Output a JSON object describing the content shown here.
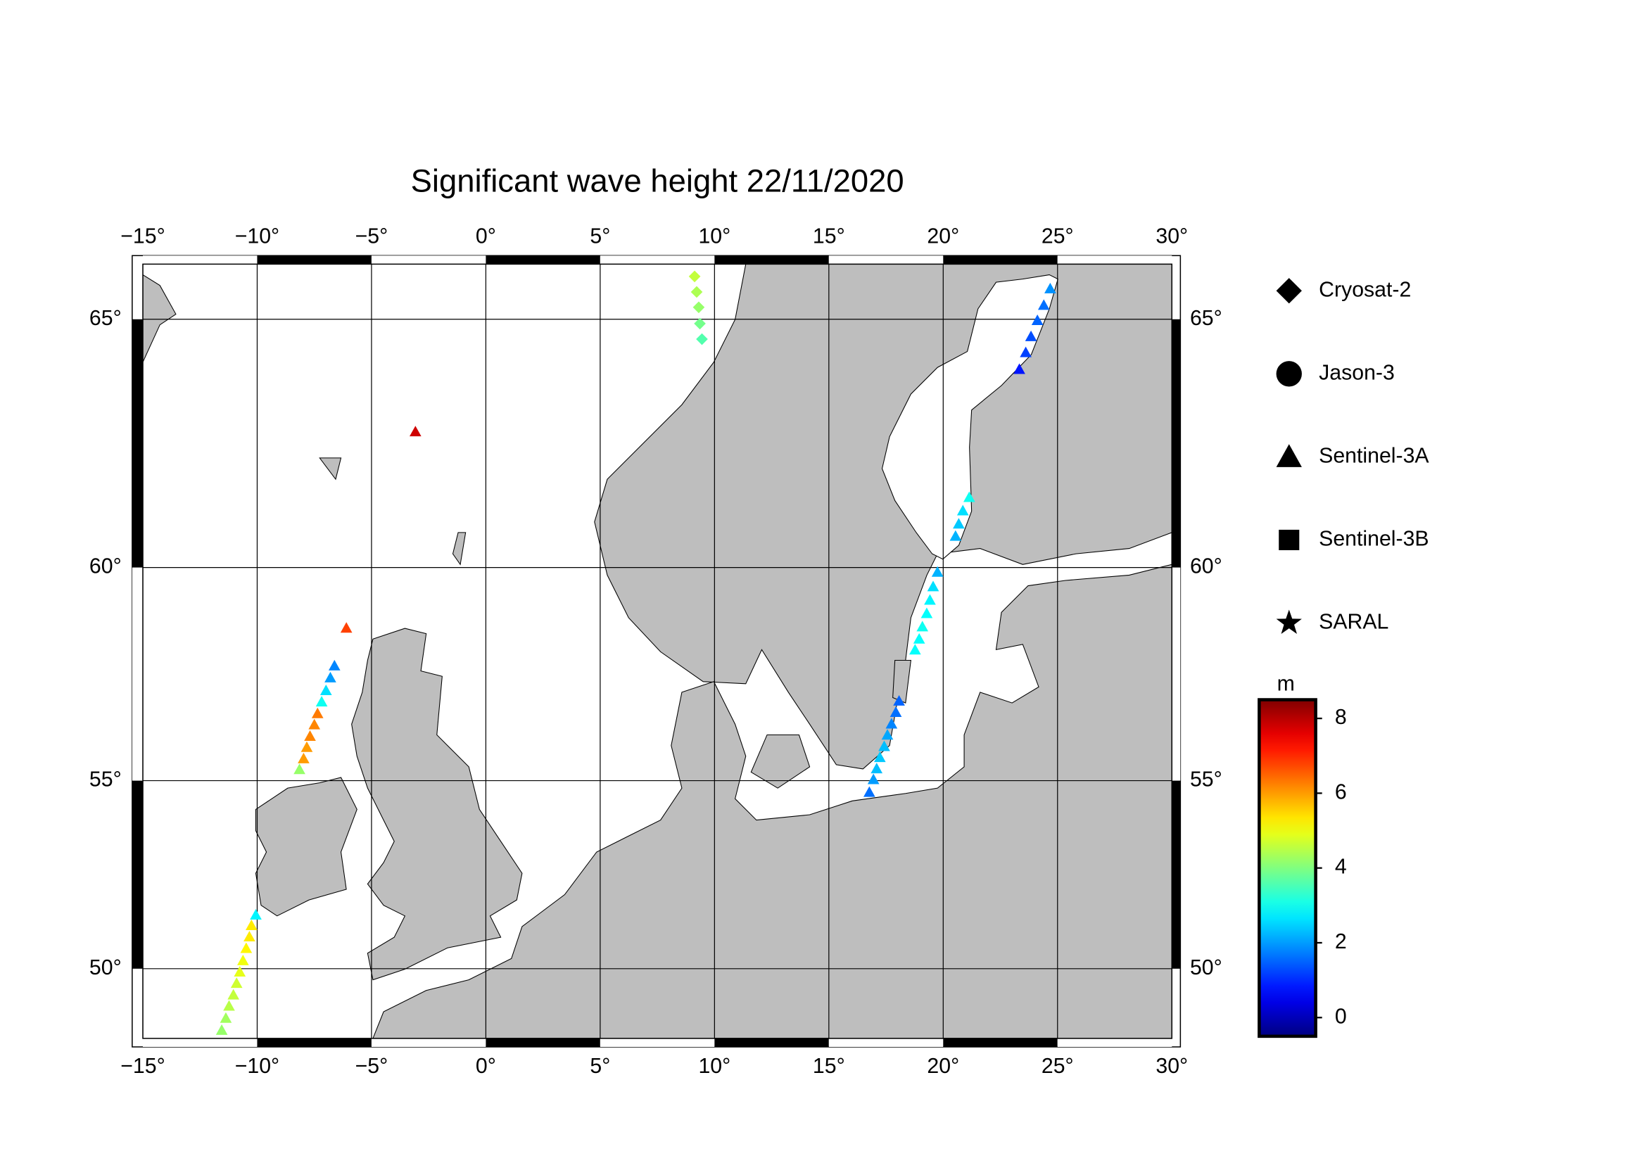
{
  "chart_data": {
    "type": "map",
    "title": "Significant wave height 22/11/2020",
    "projection": "mercator",
    "xlim": [
      -15,
      30
    ],
    "ylim": [
      48,
      66
    ],
    "xticks": [
      {
        "value": -15,
        "label": "−15°"
      },
      {
        "value": -10,
        "label": "−10°"
      },
      {
        "value": -5,
        "label": "−5°"
      },
      {
        "value": 0,
        "label": "0°"
      },
      {
        "value": 5,
        "label": "5°"
      },
      {
        "value": 10,
        "label": "10°"
      },
      {
        "value": 15,
        "label": "15°"
      },
      {
        "value": 20,
        "label": "20°"
      },
      {
        "value": 25,
        "label": "25°"
      },
      {
        "value": 30,
        "label": "30°"
      }
    ],
    "yticks": [
      {
        "value": 50,
        "label": "50°"
      },
      {
        "value": 55,
        "label": "55°"
      },
      {
        "value": 60,
        "label": "60°"
      },
      {
        "value": 65,
        "label": "65°"
      }
    ],
    "grid": true,
    "land_color": "#bebebe",
    "colorbar": {
      "label": "m",
      "lim": [
        -0.5,
        8.5
      ],
      "ticks": [
        0,
        2,
        4,
        6,
        8
      ],
      "colormap": "jet"
    },
    "series": [
      {
        "name": "Cryosat-2",
        "marker": "diamond",
        "lon": [
          9.13,
          9.22,
          9.31,
          9.36,
          9.45
        ],
        "lat": [
          65.78,
          65.5,
          65.22,
          64.92,
          64.63
        ],
        "values": [
          4.6,
          4.4,
          4.2,
          3.9,
          3.6
        ]
      },
      {
        "name": "Jason-3",
        "marker": "circle",
        "lon": [],
        "lat": [],
        "values": []
      },
      {
        "name": "Sentinel-3A",
        "marker": "triangle",
        "lon": [
          -3.08,
          -6.1,
          -6.62,
          -6.8,
          -6.99,
          -7.18,
          -7.36,
          -7.5,
          -7.69,
          -7.83,
          -7.97,
          -8.15,
          -10.06,
          -10.25,
          -10.34,
          -10.48,
          -10.62,
          -10.76,
          -10.9,
          -11.04,
          -11.23,
          -11.37,
          -11.55,
          16.77,
          16.95,
          17.09,
          17.23,
          17.42,
          17.56,
          17.74,
          17.93,
          18.07,
          18.77,
          18.95,
          19.09,
          19.28,
          19.42,
          19.56,
          19.75,
          20.54,
          20.68,
          20.86,
          21.14,
          24.68,
          24.4,
          24.12,
          23.84,
          23.61,
          23.33
        ],
        "lat": [
          62.84,
          58.65,
          57.78,
          57.5,
          57.2,
          56.93,
          56.65,
          56.38,
          56.1,
          55.83,
          55.55,
          55.28,
          51.49,
          51.2,
          50.89,
          50.57,
          50.23,
          49.91,
          49.59,
          49.26,
          48.94,
          48.59,
          48.24,
          54.71,
          55.03,
          55.3,
          55.58,
          55.85,
          56.13,
          56.4,
          56.68,
          56.95,
          58.15,
          58.4,
          58.68,
          58.98,
          59.28,
          59.58,
          59.9,
          60.68,
          60.94,
          61.22,
          61.5,
          65.56,
          65.26,
          64.98,
          64.68,
          64.38,
          64.06
        ],
        "values": [
          7.8,
          6.8,
          1.8,
          2.0,
          2.6,
          3.0,
          6.3,
          6.2,
          6.2,
          6.0,
          6.0,
          4.2,
          2.8,
          5.3,
          5.3,
          5.2,
          5.0,
          4.9,
          4.7,
          4.6,
          4.5,
          4.3,
          4.2,
          1.6,
          2.0,
          2.3,
          2.4,
          2.3,
          2.1,
          1.8,
          1.6,
          1.5,
          2.9,
          2.9,
          3.0,
          2.9,
          2.8,
          2.6,
          2.2,
          2.2,
          2.4,
          2.6,
          3.0,
          1.9,
          1.6,
          1.5,
          1.3,
          1.2,
          0.8
        ]
      },
      {
        "name": "Sentinel-3B",
        "marker": "square",
        "lon": [],
        "lat": [],
        "values": []
      },
      {
        "name": "SARAL",
        "marker": "star",
        "lon": [],
        "lat": [],
        "values": []
      }
    ]
  }
}
